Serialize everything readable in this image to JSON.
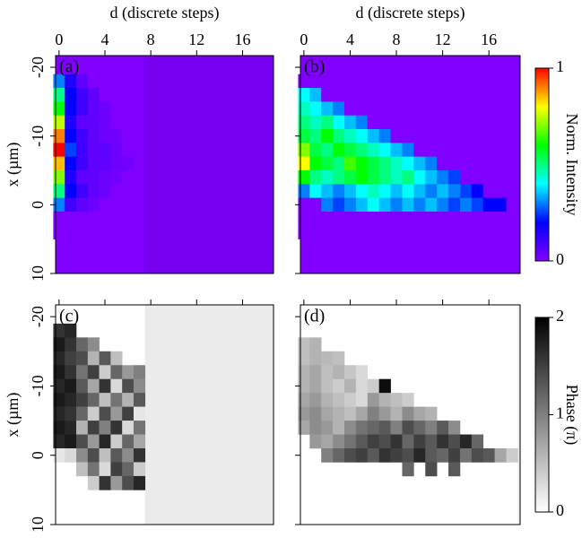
{
  "chart_data": [
    {
      "type": "heatmap",
      "title": "(a)",
      "title_color": "#ffffff",
      "xlabel": "d (discrete steps)",
      "ylabel": "x (µm)",
      "show_xtick_labels": true,
      "show_ytick_labels": true,
      "x": [
        0,
        1,
        2,
        3,
        4,
        5,
        6,
        7
      ],
      "y": [
        -18,
        -16,
        -14,
        -12,
        -10,
        -8,
        -6,
        -4,
        -2,
        0,
        2,
        4
      ],
      "z": [
        [
          0.3,
          0.15,
          0.05,
          0,
          0,
          0,
          0,
          0
        ],
        [
          0.5,
          0.2,
          0.1,
          0.05,
          0,
          0,
          0,
          0
        ],
        [
          0.6,
          0.2,
          0.1,
          0.05,
          0.03,
          0,
          0,
          0
        ],
        [
          0.75,
          0.15,
          0.05,
          0.05,
          0.03,
          0,
          0,
          0
        ],
        [
          0.9,
          0.2,
          0.1,
          0.05,
          0.03,
          0.02,
          0,
          0
        ],
        [
          1,
          0.25,
          0.1,
          0.05,
          0.05,
          0.03,
          0,
          0
        ],
        [
          0.85,
          0.2,
          0.1,
          0.05,
          0.05,
          0.03,
          0.02,
          0
        ],
        [
          0.7,
          0.15,
          0.05,
          0.05,
          0.03,
          0.02,
          0,
          0
        ],
        [
          0.5,
          0.2,
          0.1,
          0.05,
          0.03,
          0,
          0,
          0
        ],
        [
          0.3,
          0.1,
          0.05,
          0.03,
          0,
          0,
          0,
          0
        ],
        [
          0,
          0,
          0,
          0,
          0,
          0,
          0,
          0
        ],
        [
          0,
          0,
          0,
          0,
          0,
          0,
          0,
          0
        ]
      ],
      "zlim": [
        0,
        1
      ],
      "colormap": [
        "#8000ff",
        "#0000ff",
        "#00ffff",
        "#00ff00",
        "#ffff00",
        "#ff0000"
      ],
      "xlim": [
        -0.3,
        18.7
      ],
      "xticks": [
        0,
        4,
        8,
        12,
        16
      ],
      "ylim": [
        -21.7,
        10
      ],
      "yticks": [
        -20,
        -10,
        0,
        10
      ]
    },
    {
      "type": "heatmap",
      "title": "(b)",
      "title_color": "#ffffff",
      "xlabel": "d (discrete steps)",
      "show_xtick_labels": true,
      "show_ytick_labels": false,
      "x": [
        0,
        1,
        2,
        3,
        4,
        5,
        6,
        7,
        8,
        9,
        10,
        11,
        12,
        13,
        14,
        15,
        16,
        17,
        18
      ],
      "y": [
        -18,
        -16,
        -14,
        -12,
        -10,
        -8,
        -6,
        -4,
        -2,
        0,
        2,
        4
      ],
      "z": [
        [
          0,
          0,
          0,
          0,
          0,
          0,
          0,
          0,
          0,
          0,
          0,
          0,
          0,
          0,
          0,
          0,
          0,
          0,
          0
        ],
        [
          0.4,
          0.35,
          0,
          0,
          0,
          0,
          0,
          0,
          0,
          0,
          0,
          0,
          0,
          0,
          0,
          0,
          0,
          0,
          0
        ],
        [
          0.45,
          0.4,
          0.35,
          0.3,
          0,
          0,
          0,
          0,
          0,
          0,
          0,
          0,
          0,
          0,
          0,
          0,
          0,
          0,
          0
        ],
        [
          0.5,
          0.45,
          0.5,
          0.4,
          0.35,
          0.3,
          0,
          0,
          0,
          0,
          0,
          0,
          0,
          0,
          0,
          0,
          0,
          0,
          0
        ],
        [
          0.55,
          0.5,
          0.6,
          0.5,
          0.45,
          0.4,
          0.35,
          0.3,
          0,
          0,
          0,
          0,
          0,
          0,
          0,
          0,
          0,
          0,
          0
        ],
        [
          0.7,
          0.55,
          0.5,
          0.6,
          0.55,
          0.5,
          0.45,
          0.4,
          0.35,
          0.3,
          0,
          0,
          0,
          0,
          0,
          0,
          0,
          0,
          0
        ],
        [
          0.8,
          0.6,
          0.55,
          0.5,
          0.65,
          0.6,
          0.55,
          0.5,
          0.45,
          0.4,
          0.35,
          0.3,
          0,
          0,
          0,
          0,
          0,
          0,
          0
        ],
        [
          0.6,
          0.5,
          0.45,
          0.5,
          0.55,
          0.6,
          0.55,
          0.5,
          0.45,
          0.5,
          0.4,
          0.35,
          0.3,
          0.25,
          0,
          0,
          0,
          0,
          0
        ],
        [
          0.3,
          0.4,
          0.35,
          0.3,
          0.35,
          0.4,
          0.45,
          0.4,
          0.35,
          0.4,
          0.35,
          0.3,
          0.35,
          0.3,
          0.25,
          0.2,
          0,
          0,
          0
        ],
        [
          0,
          0,
          0.3,
          0.25,
          0.3,
          0.35,
          0.4,
          0.35,
          0.3,
          0.35,
          0.3,
          0.35,
          0.3,
          0.25,
          0.3,
          0.25,
          0.2,
          0.2,
          0
        ],
        [
          0,
          0,
          0,
          0,
          0,
          0,
          0,
          0,
          0,
          0,
          0,
          0,
          0,
          0,
          0,
          0,
          0,
          0,
          0
        ],
        [
          0,
          0,
          0,
          0,
          0,
          0,
          0,
          0,
          0,
          0,
          0,
          0,
          0,
          0,
          0,
          0,
          0,
          0,
          0
        ]
      ],
      "zlim": [
        0,
        1
      ],
      "colormap": [
        "#8000ff",
        "#0000ff",
        "#00ffff",
        "#00ff00",
        "#ffff00",
        "#ff0000"
      ],
      "xlim": [
        -0.3,
        18.7
      ],
      "xticks": [
        0,
        4,
        8,
        12,
        16
      ],
      "ylim": [
        -21.7,
        10
      ],
      "yticks": [
        -20,
        -10,
        0,
        10
      ],
      "colorbar": {
        "label": "Norm. Intensity",
        "ticks": [
          0,
          1
        ]
      }
    },
    {
      "type": "heatmap",
      "title": "(c)",
      "title_color": "#000000",
      "ylabel": "x (µm)",
      "show_xtick_labels": false,
      "show_ytick_labels": true,
      "x": [
        0,
        1,
        2,
        3,
        4,
        5,
        6,
        7
      ],
      "y": [
        -18,
        -16,
        -14,
        -12,
        -10,
        -8,
        -6,
        -4,
        -2,
        0,
        2,
        4
      ],
      "z": [
        [
          1.6,
          1.7,
          null,
          null,
          null,
          null,
          null,
          null
        ],
        [
          1.8,
          1.6,
          1.2,
          0.9,
          null,
          null,
          null,
          null
        ],
        [
          1.7,
          1.5,
          1.4,
          0.6,
          1.3,
          0.5,
          null,
          null
        ],
        [
          1.8,
          1.6,
          1.1,
          1.5,
          0.4,
          1.2,
          0.8,
          1.0
        ],
        [
          1.7,
          1.8,
          1.3,
          0.7,
          1.6,
          0.3,
          1.4,
          0.9
        ],
        [
          1.8,
          1.7,
          1.5,
          1.2,
          0.5,
          1.1,
          0.6,
          1.3
        ],
        [
          1.7,
          1.6,
          1.2,
          0.4,
          1.4,
          0.8,
          1.5,
          0.2
        ],
        [
          1.8,
          1.7,
          0.6,
          1.5,
          1.0,
          1.6,
          0.3,
          1.1
        ],
        [
          1.7,
          1.8,
          1.4,
          0.8,
          1.7,
          0.4,
          1.2,
          0.7
        ],
        [
          0.2,
          0.3,
          0.9,
          1.4,
          0.5,
          1.3,
          0.9,
          1.6
        ],
        [
          null,
          null,
          0.5,
          1.1,
          0.3,
          1.5,
          1.2,
          0.4
        ],
        [
          null,
          null,
          null,
          0.4,
          1.6,
          0.8,
          1.4,
          1.7
        ]
      ],
      "zlim": [
        0,
        2
      ],
      "colormap": [
        "#ffffff",
        "#000000"
      ],
      "xlim": [
        -0.3,
        18.7
      ],
      "xticks": [
        0,
        4,
        8,
        12,
        16
      ],
      "ylim": [
        -21.7,
        10
      ],
      "yticks": [
        -20,
        -10,
        0,
        10
      ]
    },
    {
      "type": "heatmap",
      "title": "(d)",
      "title_color": "#000000",
      "show_xtick_labels": false,
      "show_ytick_labels": false,
      "x": [
        0,
        1,
        2,
        3,
        4,
        5,
        6,
        7,
        8,
        9,
        10,
        11,
        12,
        13,
        14,
        15,
        16,
        17,
        18
      ],
      "y": [
        -18,
        -16,
        -14,
        -12,
        -10,
        -8,
        -6,
        -4,
        -2,
        0,
        2,
        4
      ],
      "z": [
        [
          null,
          null,
          null,
          null,
          null,
          null,
          null,
          null,
          null,
          null,
          null,
          null,
          null,
          null,
          null,
          null,
          null,
          null,
          null
        ],
        [
          0.5,
          0.6,
          null,
          null,
          null,
          null,
          null,
          null,
          null,
          null,
          null,
          null,
          null,
          null,
          null,
          null,
          null,
          null,
          null
        ],
        [
          0.5,
          0.6,
          0.55,
          0.5,
          null,
          null,
          null,
          null,
          null,
          null,
          null,
          null,
          null,
          null,
          null,
          null,
          null,
          null,
          null
        ],
        [
          0.6,
          0.7,
          0.5,
          0.6,
          0.45,
          0.3,
          null,
          null,
          null,
          null,
          null,
          null,
          null,
          null,
          null,
          null,
          null,
          null,
          null
        ],
        [
          0.6,
          0.7,
          0.5,
          0.4,
          0.6,
          0.3,
          0.4,
          1.9,
          null,
          null,
          null,
          null,
          null,
          null,
          null,
          null,
          null,
          null,
          null
        ],
        [
          0.7,
          0.8,
          0.6,
          0.5,
          0.4,
          0.3,
          0.8,
          0.6,
          0.5,
          0.4,
          null,
          null,
          null,
          null,
          null,
          null,
          null,
          null,
          null
        ],
        [
          0.8,
          0.9,
          0.7,
          0.6,
          0.5,
          0.7,
          1.0,
          0.8,
          0.6,
          0.9,
          0.7,
          0.6,
          null,
          null,
          null,
          null,
          null,
          null,
          null
        ],
        [
          0.7,
          0.9,
          0.8,
          0.6,
          0.9,
          1.1,
          1.2,
          1.3,
          1.0,
          1.4,
          1.2,
          1.0,
          1.3,
          0.9,
          null,
          null,
          null,
          null,
          null
        ],
        [
          null,
          0.8,
          0.7,
          0.9,
          1.1,
          1.3,
          1.5,
          1.4,
          1.6,
          1.2,
          1.5,
          1.3,
          1.6,
          1.4,
          1.7,
          1.2,
          null,
          null,
          null
        ],
        [
          null,
          null,
          1.0,
          1.2,
          1.4,
          1.5,
          1.3,
          1.6,
          1.5,
          1.4,
          1.7,
          1.3,
          1.2,
          1.5,
          1.1,
          1.4,
          1.3,
          0.7,
          0.4
        ],
        [
          null,
          null,
          null,
          null,
          null,
          null,
          null,
          null,
          null,
          1.2,
          null,
          1.4,
          null,
          1.3,
          null,
          null,
          null,
          null,
          null
        ],
        [
          null,
          null,
          null,
          null,
          null,
          null,
          null,
          null,
          null,
          null,
          null,
          null,
          null,
          null,
          null,
          null,
          null,
          null,
          null
        ]
      ],
      "zlim": [
        0,
        2
      ],
      "colormap": [
        "#ffffff",
        "#000000"
      ],
      "xlim": [
        -0.3,
        18.7
      ],
      "xticks": [
        0,
        4,
        8,
        12,
        16
      ],
      "ylim": [
        -21.7,
        10
      ],
      "yticks": [
        -20,
        -10,
        0,
        10
      ],
      "colorbar": {
        "label": "Phase (π)",
        "ticks": [
          0,
          1,
          2
        ]
      }
    }
  ]
}
